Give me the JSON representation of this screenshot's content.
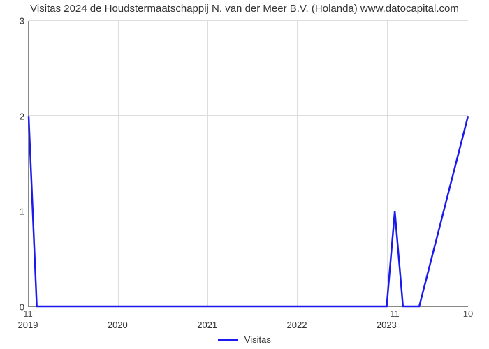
{
  "chart": {
    "type": "line",
    "title": "Visitas 2024 de Houdstermaatschappij N. van der Meer B.V. (Holanda) www.datocapital.com",
    "title_fontsize": 15,
    "title_color": "#333333",
    "background_color": "#ffffff",
    "plot_border_color": "#888888",
    "grid_color": "#dddddd",
    "series": [
      {
        "name": "Visitas",
        "color": "#1a1aee",
        "line_width": 2.5,
        "x": [
          0,
          1,
          2,
          3,
          4,
          5,
          6,
          44,
          45,
          46,
          47,
          48,
          54
        ],
        "y": [
          2,
          0,
          0,
          0,
          0,
          0,
          0,
          0,
          1,
          0,
          0,
          0,
          2
        ]
      }
    ],
    "x_axis": {
      "range": [
        0,
        54
      ],
      "year_ticks": [
        {
          "pos": 0,
          "label": "2019"
        },
        {
          "pos": 11,
          "label": "2020"
        },
        {
          "pos": 22,
          "label": "2021"
        },
        {
          "pos": 33,
          "label": "2022"
        },
        {
          "pos": 44,
          "label": "2023"
        }
      ],
      "value_labels": [
        {
          "pos": 0,
          "label": "11"
        },
        {
          "pos": 45,
          "label": "11"
        },
        {
          "pos": 54,
          "label": "10"
        }
      ],
      "tick_fontsize": 13
    },
    "y_axis": {
      "range": [
        0,
        3
      ],
      "ticks": [
        0,
        1,
        2,
        3
      ],
      "tick_fontsize": 13
    },
    "legend": {
      "label": "Visitas",
      "position": "bottom-center",
      "fontsize": 13,
      "swatch_color": "#1a1aee"
    }
  }
}
